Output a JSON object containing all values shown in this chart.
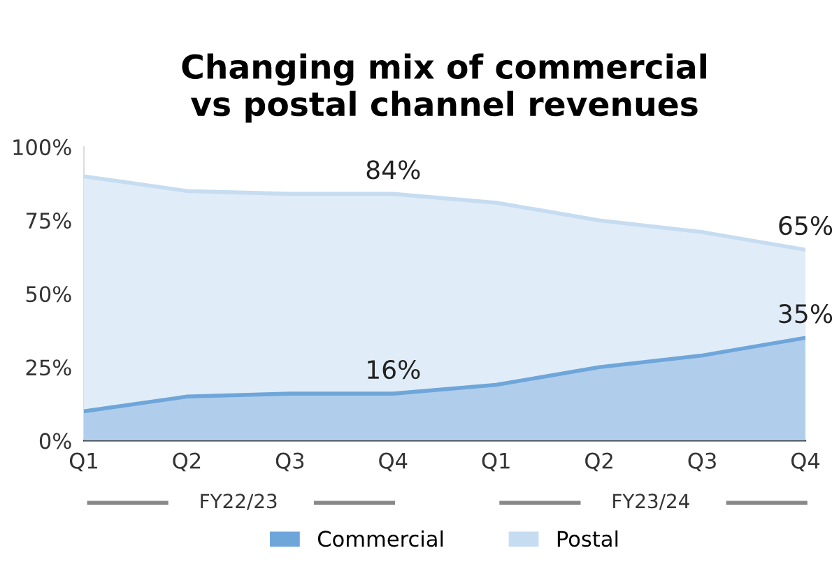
{
  "chart_data": {
    "type": "area",
    "title": "Changing mix of commercial\nvs postal channel revenues",
    "categories": [
      "Q1",
      "Q2",
      "Q3",
      "Q4",
      "Q1",
      "Q2",
      "Q3",
      "Q4"
    ],
    "series": [
      {
        "name": "Commercial",
        "color": "#6fa6da",
        "values": [
          10,
          15,
          16,
          16,
          19,
          25,
          29,
          35
        ],
        "value_labels": [
          null,
          null,
          null,
          "16%",
          null,
          null,
          null,
          "35%"
        ]
      },
      {
        "name": "Postal",
        "color": "#c6dcf1",
        "values": [
          90,
          85,
          84,
          84,
          81,
          75,
          71,
          65
        ],
        "value_labels": [
          null,
          null,
          null,
          "84%",
          null,
          null,
          null,
          "65%"
        ]
      }
    ],
    "ylim": [
      0,
      100
    ],
    "yticks": [
      {
        "value": 0,
        "label": "0%"
      },
      {
        "value": 25,
        "label": "25%"
      },
      {
        "value": 50,
        "label": "50%"
      },
      {
        "value": 75,
        "label": "75%"
      },
      {
        "value": 100,
        "label": "100%"
      }
    ],
    "annotations": [
      "FY22/23",
      "FY23/24"
    ],
    "legend": "bottom",
    "grid": false
  }
}
